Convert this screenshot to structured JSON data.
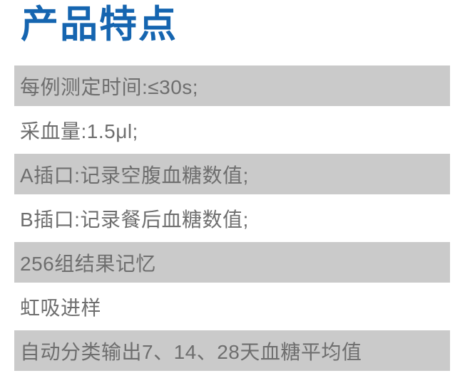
{
  "page": {
    "background_color": "#ffffff",
    "accent_blue": "#1565b0",
    "row_gray": "#cacaca",
    "row_text_color": "#6e6e6e"
  },
  "header": {
    "title": "产品特点"
  },
  "features": {
    "items": [
      {
        "text": "每例测定时间:≤30s;",
        "shaded": true
      },
      {
        "text": "采血量:1.5μl;",
        "shaded": false
      },
      {
        "text": "A插口:记录空腹血糖数值;",
        "shaded": true
      },
      {
        "text": "B插口:记录餐后血糖数值;",
        "shaded": false
      },
      {
        "text": "256组结果记忆",
        "shaded": true
      },
      {
        "text": "虹吸进样",
        "shaded": false
      },
      {
        "text": "自动分类输出7、14、28天血糖平均值",
        "shaded": true
      }
    ]
  }
}
